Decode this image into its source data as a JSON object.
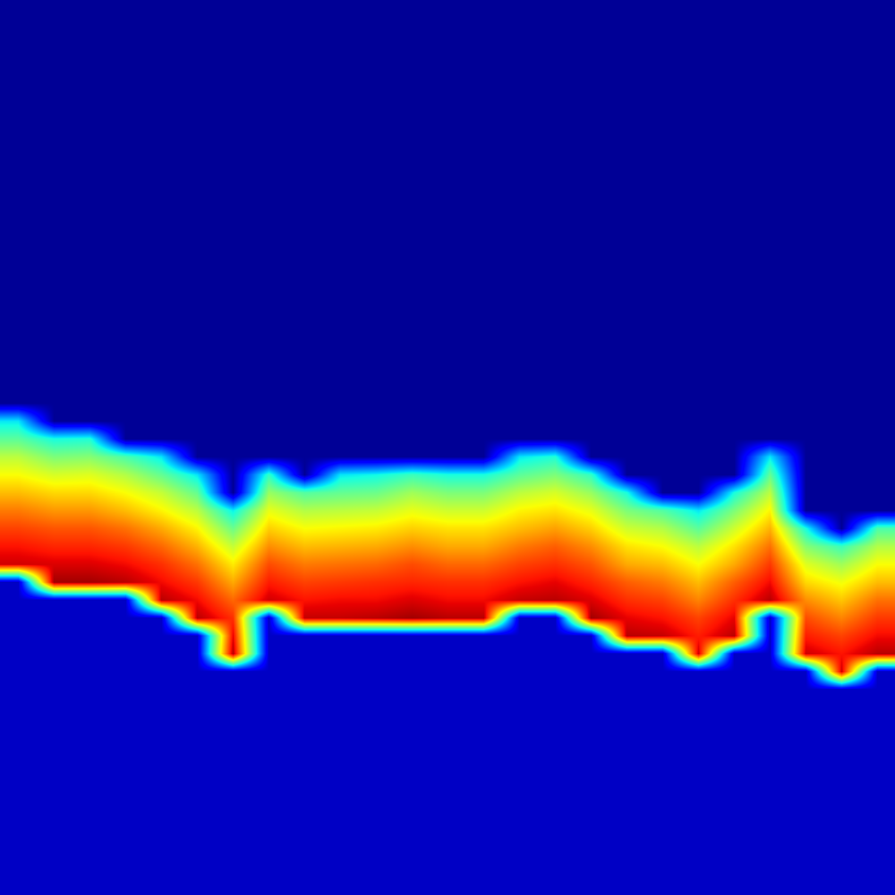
{
  "chart_data": {
    "type": "heatmap",
    "tick_labels": false,
    "zlim": [
      0,
      100
    ],
    "z": [
      [
        2,
        2,
        2,
        2,
        2,
        2,
        2,
        2,
        2,
        2,
        2,
        2,
        2,
        2,
        2,
        2,
        2,
        2,
        2,
        2,
        2,
        2,
        2,
        2,
        2
      ],
      [
        2,
        2,
        2,
        2,
        2,
        2,
        2,
        2,
        2,
        2,
        2,
        2,
        2,
        2,
        2,
        2,
        2,
        2,
        2,
        2,
        2,
        2,
        2,
        2,
        2
      ],
      [
        2,
        2,
        2,
        2,
        2,
        2,
        2,
        2,
        2,
        2,
        2,
        2,
        2,
        2,
        2,
        2,
        2,
        2,
        2,
        2,
        2,
        2,
        2,
        2,
        2
      ],
      [
        2,
        2,
        2,
        2,
        2,
        2,
        2,
        2,
        2,
        2,
        2,
        2,
        2,
        2,
        2,
        2,
        2,
        2,
        2,
        2,
        2,
        2,
        2,
        2,
        2
      ],
      [
        2,
        2,
        2,
        2,
        2,
        2,
        2,
        2,
        2,
        2,
        2,
        2,
        2,
        2,
        2,
        2,
        2,
        2,
        2,
        2,
        2,
        2,
        2,
        2,
        2
      ],
      [
        2,
        2,
        2,
        2,
        2,
        2,
        2,
        2,
        2,
        2,
        2,
        2,
        2,
        2,
        2,
        2,
        2,
        2,
        2,
        2,
        2,
        2,
        2,
        2,
        2
      ],
      [
        2,
        2,
        2,
        2,
        2,
        2,
        2,
        2,
        2,
        2,
        2,
        2,
        2,
        2,
        2,
        2,
        2,
        2,
        2,
        2,
        2,
        2,
        2,
        2,
        2
      ],
      [
        2,
        2,
        2,
        2,
        2,
        2,
        2,
        2,
        2,
        2,
        2,
        2,
        2,
        2,
        2,
        2,
        2,
        2,
        2,
        2,
        2,
        2,
        2,
        2,
        2
      ],
      [
        2,
        2,
        2,
        2,
        2,
        2,
        2,
        2,
        2,
        2,
        2,
        2,
        2,
        2,
        2,
        2,
        2,
        2,
        2,
        2,
        2,
        2,
        2,
        2,
        2
      ],
      [
        2,
        2,
        2,
        2,
        2,
        2,
        2,
        2,
        2,
        2,
        2,
        2,
        2,
        2,
        2,
        2,
        2,
        2,
        2,
        2,
        2,
        2,
        2,
        2,
        2
      ],
      [
        2,
        2,
        2,
        2,
        2,
        2,
        2,
        2,
        2,
        2,
        2,
        2,
        2,
        2,
        2,
        2,
        2,
        2,
        2,
        2,
        2,
        2,
        2,
        2,
        2
      ],
      [
        2,
        2,
        2,
        2,
        2,
        2,
        2,
        2,
        2,
        2,
        2,
        2,
        2,
        2,
        2,
        2,
        2,
        2,
        2,
        2,
        2,
        2,
        2,
        2,
        2
      ],
      [
        2,
        2,
        2,
        2,
        2,
        2,
        2,
        2,
        2,
        2,
        2,
        2,
        2,
        2,
        2,
        2,
        2,
        2,
        2,
        2,
        2,
        2,
        2,
        2,
        2
      ],
      [
        2,
        2,
        2,
        2,
        2,
        2,
        2,
        2,
        2,
        2,
        2,
        2,
        2,
        2,
        2,
        2,
        2,
        2,
        2,
        2,
        2,
        2,
        2,
        2,
        2
      ],
      [
        2,
        2,
        2,
        2,
        2,
        2,
        2,
        2,
        2,
        2,
        2,
        2,
        2,
        2,
        2,
        2,
        2,
        2,
        2,
        2,
        2,
        2,
        2,
        2,
        2
      ],
      [
        2,
        2,
        2,
        2,
        2,
        2,
        2,
        2,
        2,
        2,
        2,
        2,
        2,
        2,
        2,
        2,
        2,
        2,
        2,
        2,
        2,
        2,
        2,
        2,
        2
      ],
      [
        2,
        2,
        2,
        2,
        2,
        2,
        2,
        2,
        2,
        2,
        2,
        2,
        2,
        2,
        2,
        2,
        2,
        2,
        2,
        2,
        2,
        2,
        2,
        2,
        2
      ],
      [
        2,
        2,
        2,
        2,
        2,
        2,
        2,
        2,
        2,
        2,
        2,
        2,
        2,
        2,
        2,
        2,
        2,
        2,
        2,
        2,
        2,
        2,
        2,
        2,
        2
      ],
      [
        2,
        2,
        2,
        2,
        2,
        2,
        2,
        2,
        2,
        2,
        2,
        2,
        2,
        2,
        2,
        2,
        2,
        2,
        2,
        2,
        2,
        2,
        2,
        2,
        2
      ],
      [
        2,
        2,
        2,
        2,
        2,
        2,
        2,
        2,
        2,
        2,
        2,
        2,
        2,
        2,
        2,
        2,
        2,
        2,
        2,
        2,
        2,
        2,
        2,
        2,
        2
      ],
      [
        2,
        2,
        2,
        2,
        2,
        2,
        2,
        2,
        2,
        2,
        2,
        2,
        2,
        2,
        2,
        2,
        2,
        2,
        2,
        2,
        2,
        2,
        2,
        2,
        2
      ],
      [
        2,
        2,
        2,
        2,
        2,
        2,
        2,
        2,
        2,
        2,
        2,
        2,
        2,
        2,
        2,
        2,
        2,
        2,
        2,
        2,
        2,
        2,
        2,
        2,
        2
      ],
      [
        2,
        2,
        2,
        2,
        2,
        2,
        2,
        2,
        2,
        2,
        2,
        2,
        2,
        2,
        2,
        2,
        2,
        2,
        2,
        2,
        2,
        2,
        2,
        2,
        2
      ],
      [
        35,
        2,
        2,
        2,
        2,
        2,
        2,
        2,
        2,
        2,
        2,
        2,
        2,
        2,
        2,
        2,
        2,
        2,
        2,
        2,
        2,
        2,
        2,
        2,
        2
      ],
      [
        46,
        38,
        39,
        2,
        2,
        2,
        2,
        2,
        2,
        2,
        2,
        2,
        2,
        2,
        2,
        2,
        2,
        2,
        2,
        2,
        2,
        2,
        2,
        2,
        2
      ],
      [
        57,
        50,
        51,
        44,
        35,
        2,
        2,
        2,
        2,
        2,
        2,
        2,
        2,
        2,
        35,
        39,
        2,
        2,
        2,
        2,
        2,
        35,
        2,
        2,
        2
      ],
      [
        64,
        60,
        61,
        56,
        47,
        35,
        2,
        41,
        2,
        35,
        37,
        42,
        38,
        38,
        46,
        50,
        41,
        2,
        2,
        2,
        2,
        47,
        2,
        2,
        2
      ],
      [
        71,
        68,
        68,
        64,
        58,
        47,
        2,
        53,
        45,
        47,
        48,
        54,
        50,
        50,
        57,
        60,
        53,
        38,
        2,
        2,
        38,
        57,
        2,
        2,
        2
      ],
      [
        78,
        75,
        75,
        71,
        65,
        57,
        36,
        62,
        56,
        57,
        58,
        62,
        59,
        59,
        65,
        67,
        62,
        50,
        45,
        35,
        50,
        65,
        2,
        2,
        2
      ],
      [
        84,
        82,
        82,
        79,
        73,
        65,
        48,
        69,
        64,
        65,
        66,
        69,
        67,
        67,
        71,
        74,
        69,
        59,
        56,
        46,
        59,
        72,
        38,
        2,
        44
      ],
      [
        89,
        87,
        87,
        85,
        80,
        72,
        58,
        76,
        71,
        72,
        73,
        76,
        73,
        73,
        78,
        81,
        76,
        67,
        64,
        57,
        67,
        79,
        51,
        42,
        56
      ],
      [
        93,
        92,
        92,
        90,
        86,
        79,
        66,
        83,
        78,
        79,
        80,
        83,
        80,
        80,
        84,
        86,
        82,
        73,
        71,
        64,
        73,
        85,
        61,
        54,
        64
      ],
      [
        6,
        97,
        97,
        95,
        90,
        85,
        73,
        88,
        84,
        85,
        86,
        87,
        86,
        86,
        89,
        91,
        87,
        81,
        78,
        71,
        81,
        90,
        68,
        63,
        71
      ],
      [
        6,
        6,
        6,
        6,
        95,
        90,
        80,
        93,
        89,
        90,
        90,
        92,
        90,
        90,
        94,
        95,
        92,
        86,
        84,
        77,
        86,
        95,
        76,
        70,
        79
      ],
      [
        6,
        6,
        6,
        6,
        6,
        95,
        86,
        6,
        94,
        94,
        95,
        97,
        95,
        95,
        6,
        6,
        97,
        91,
        89,
        84,
        91,
        6,
        83,
        77,
        85
      ],
      [
        6,
        6,
        6,
        6,
        6,
        6,
        91,
        6,
        6,
        6,
        6,
        6,
        6,
        6,
        6,
        6,
        6,
        95,
        94,
        88,
        95,
        6,
        88,
        84,
        90
      ],
      [
        6,
        6,
        6,
        6,
        6,
        6,
        95,
        6,
        6,
        6,
        6,
        6,
        6,
        6,
        6,
        6,
        6,
        6,
        6,
        93,
        6,
        6,
        93,
        89,
        95
      ],
      [
        6,
        6,
        6,
        6,
        6,
        6,
        6,
        6,
        6,
        6,
        6,
        6,
        6,
        6,
        6,
        6,
        6,
        6,
        6,
        6,
        6,
        6,
        6,
        93,
        6
      ],
      [
        6,
        6,
        6,
        6,
        6,
        6,
        6,
        6,
        6,
        6,
        6,
        6,
        6,
        6,
        6,
        6,
        6,
        6,
        6,
        6,
        6,
        6,
        6,
        6,
        6
      ],
      [
        6,
        6,
        6,
        6,
        6,
        6,
        6,
        6,
        6,
        6,
        6,
        6,
        6,
        6,
        6,
        6,
        6,
        6,
        6,
        6,
        6,
        6,
        6,
        6,
        6
      ],
      [
        6,
        6,
        6,
        6,
        6,
        6,
        6,
        6,
        6,
        6,
        6,
        6,
        6,
        6,
        6,
        6,
        6,
        6,
        6,
        6,
        6,
        6,
        6,
        6,
        6
      ],
      [
        6,
        6,
        6,
        6,
        6,
        6,
        6,
        6,
        6,
        6,
        6,
        6,
        6,
        6,
        6,
        6,
        6,
        6,
        6,
        6,
        6,
        6,
        6,
        6,
        6
      ],
      [
        6,
        6,
        6,
        6,
        6,
        6,
        6,
        6,
        6,
        6,
        6,
        6,
        6,
        6,
        6,
        6,
        6,
        6,
        6,
        6,
        6,
        6,
        6,
        6,
        6
      ],
      [
        6,
        6,
        6,
        6,
        6,
        6,
        6,
        6,
        6,
        6,
        6,
        6,
        6,
        6,
        6,
        6,
        6,
        6,
        6,
        6,
        6,
        6,
        6,
        6,
        6
      ],
      [
        6,
        6,
        6,
        6,
        6,
        6,
        6,
        6,
        6,
        6,
        6,
        6,
        6,
        6,
        6,
        6,
        6,
        6,
        6,
        6,
        6,
        6,
        6,
        6,
        6
      ],
      [
        6,
        6,
        6,
        6,
        6,
        6,
        6,
        6,
        6,
        6,
        6,
        6,
        6,
        6,
        6,
        6,
        6,
        6,
        6,
        6,
        6,
        6,
        6,
        6,
        6
      ],
      [
        6,
        6,
        6,
        6,
        6,
        6,
        6,
        6,
        6,
        6,
        6,
        6,
        6,
        6,
        6,
        6,
        6,
        6,
        6,
        6,
        6,
        6,
        6,
        6,
        6
      ],
      [
        6,
        6,
        6,
        6,
        6,
        6,
        6,
        6,
        6,
        6,
        6,
        6,
        6,
        6,
        6,
        6,
        6,
        6,
        6,
        6,
        6,
        6,
        6,
        6,
        6
      ],
      [
        6,
        6,
        6,
        6,
        6,
        6,
        6,
        6,
        6,
        6,
        6,
        6,
        6,
        6,
        6,
        6,
        6,
        6,
        6,
        6,
        6,
        6,
        6,
        6,
        6
      ],
      [
        6,
        6,
        6,
        6,
        6,
        6,
        6,
        6,
        6,
        6,
        6,
        6,
        6,
        6,
        6,
        6,
        6,
        6,
        6,
        6,
        6,
        6,
        6,
        6,
        6
      ]
    ]
  }
}
